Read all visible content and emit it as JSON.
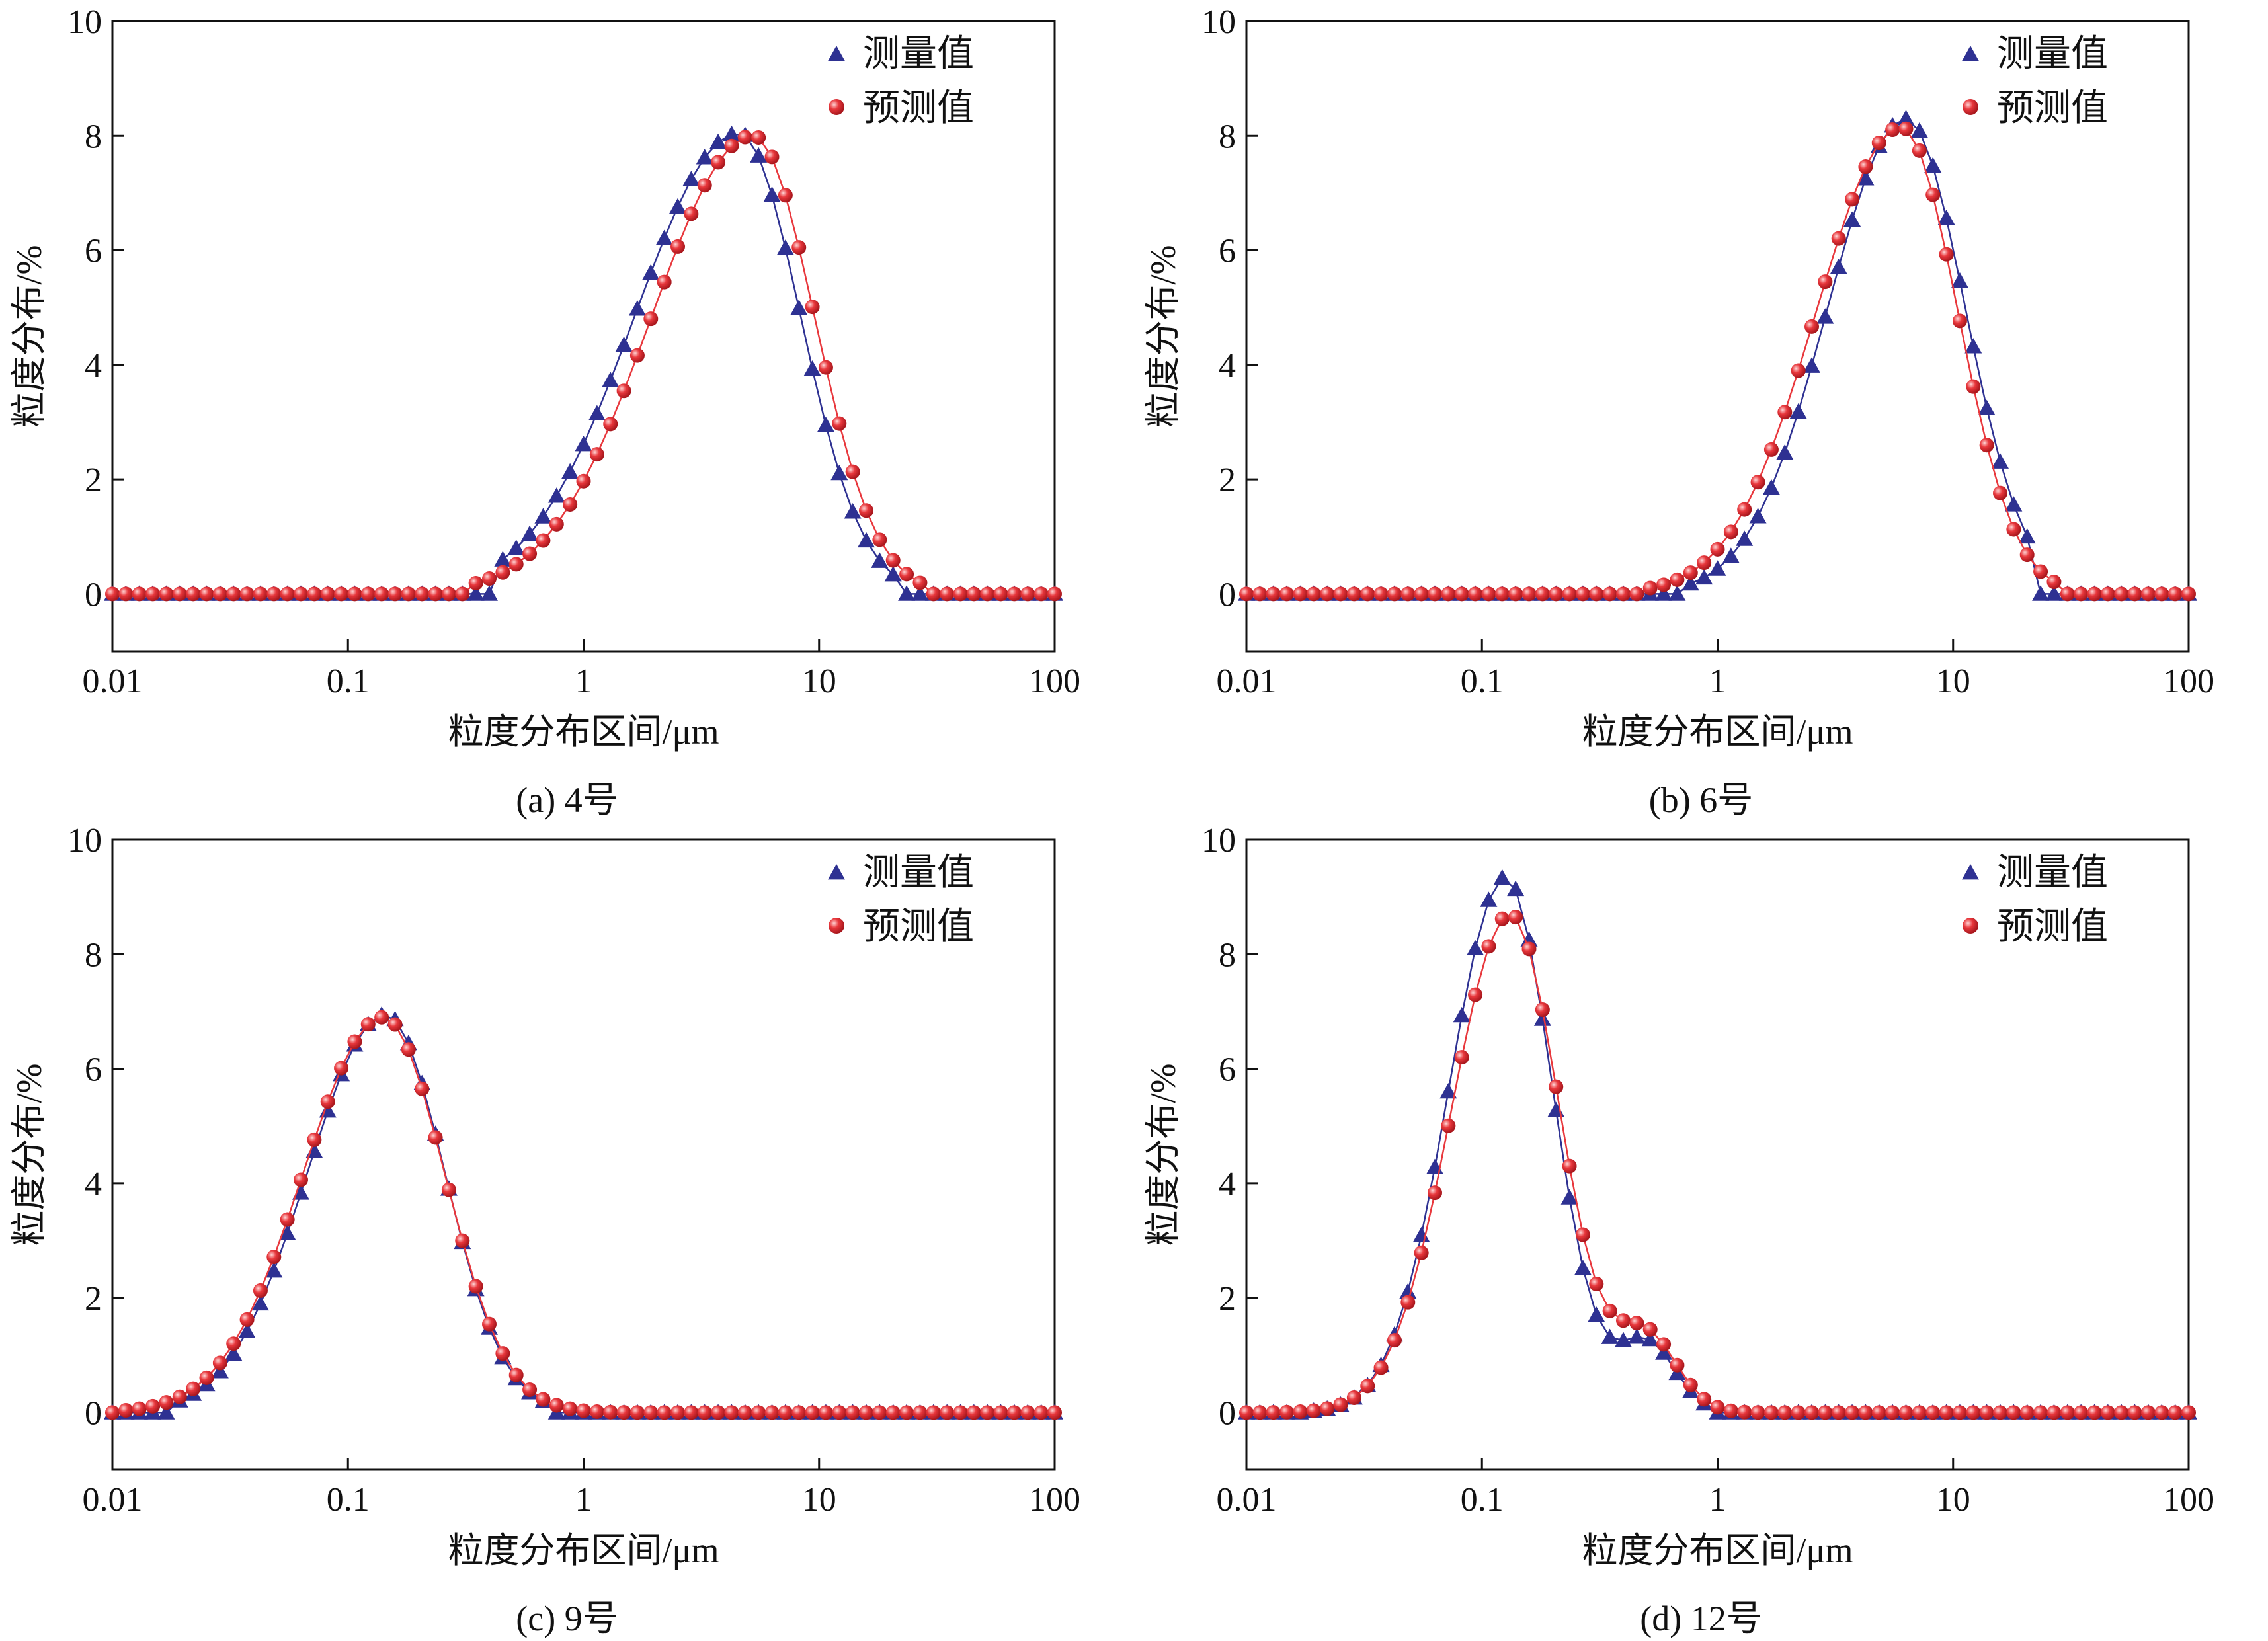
{
  "colors": {
    "measured": "#2e3192",
    "predicted": "#e8373c",
    "axis": "#111111"
  },
  "legend": {
    "measured": "测量值",
    "predicted": "预测值"
  },
  "chart_data": [
    {
      "type": "line",
      "caption": "(a) 4号",
      "xlabel": "粒度分布区间/μm",
      "ylabel": "粒度分布/%",
      "xscale": "log",
      "xlim": [
        0.01,
        100
      ],
      "ylim": [
        -1,
        10
      ],
      "xticks": [
        "0.01",
        "0.1",
        "1",
        "10",
        "100"
      ],
      "yticks": [
        "0",
        "2",
        "4",
        "6",
        "8",
        "10"
      ],
      "legend_position": "top-right",
      "series": [
        {
          "name": "测量值",
          "marker": "triangle",
          "params": {
            "peak": 8.05,
            "center_log10": 0.66,
            "sigma_left": 0.44,
            "sigma_right": 0.26,
            "cut_low_log10": -0.36,
            "cut_high_log10": 1.33
          }
        },
        {
          "name": "预测值",
          "marker": "sphere",
          "params": {
            "peak": 8.0,
            "center_log10": 0.72,
            "sigma_left": 0.43,
            "sigma_right": 0.26,
            "cut_low_log10": -0.5,
            "cut_high_log10": 1.45
          }
        }
      ]
    },
    {
      "type": "line",
      "caption": "(b) 6号",
      "xlabel": "粒度分布区间/μm",
      "ylabel": "粒度分布/%",
      "xscale": "log",
      "xlim": [
        0.01,
        100
      ],
      "ylim": [
        -1,
        10
      ],
      "xticks": [
        "0.01",
        "0.1",
        "1",
        "10",
        "100"
      ],
      "yticks": [
        "0",
        "2",
        "4",
        "6",
        "8",
        "10"
      ],
      "legend_position": "top-right",
      "series": [
        {
          "name": "测量值",
          "marker": "triangle",
          "params": {
            "peak": 8.3,
            "center_log10": 0.8,
            "sigma_left": 0.33,
            "sigma_right": 0.25,
            "cut_low_log10": -0.16,
            "cut_high_log10": 1.35
          }
        },
        {
          "name": "预测值",
          "marker": "sphere",
          "params": {
            "peak": 8.15,
            "center_log10": 0.78,
            "sigma_left": 0.36,
            "sigma_right": 0.24,
            "cut_low_log10": -0.3,
            "cut_high_log10": 1.45
          }
        }
      ]
    },
    {
      "type": "line",
      "caption": "(c) 9号",
      "xlabel": "粒度分布区间/μm",
      "ylabel": "粒度分布/%",
      "xscale": "log",
      "xlim": [
        0.01,
        100
      ],
      "ylim": [
        -1,
        10
      ],
      "xticks": [
        "0.01",
        "0.1",
        "1",
        "10",
        "100"
      ],
      "yticks": [
        "0",
        "2",
        "4",
        "6",
        "8",
        "10"
      ],
      "legend_position": "top-right",
      "series": [
        {
          "name": "测量值",
          "marker": "triangle",
          "params": {
            "peak": 6.95,
            "center_log10": -0.84,
            "sigma_left": 0.33,
            "sigma_right": 0.25,
            "cut_low_log10": -1.75,
            "cut_high_log10": -0.14
          }
        },
        {
          "name": "预测值",
          "marker": "sphere",
          "params": {
            "peak": 6.9,
            "center_log10": -0.85,
            "sigma_left": 0.34,
            "sigma_right": 0.26,
            "cut_low_log10": -1.95,
            "cut_high_log10": 0.5
          }
        }
      ]
    },
    {
      "type": "line",
      "caption": "(d) 12号",
      "xlabel": "粒度分布区间/μm",
      "ylabel": "粒度分布/%",
      "xscale": "log",
      "xlim": [
        0.01,
        100
      ],
      "ylim": [
        -1,
        10
      ],
      "xticks": [
        "0.01",
        "0.1",
        "1",
        "10",
        "100"
      ],
      "yticks": [
        "0",
        "2",
        "4",
        "6",
        "8",
        "10"
      ],
      "legend_position": "top-right",
      "series": [
        {
          "name": "测量值",
          "marker": "triangle",
          "params": {
            "peak": 9.35,
            "center_log10": -0.9,
            "sigma_left": 0.24,
            "sigma_right": 0.2,
            "cut_low_log10": -1.75,
            "cut_high_log10": -0.02,
            "shoulder": {
              "center_log10": -0.3,
              "height": 1.2,
              "sigma": 0.12
            }
          }
        },
        {
          "name": "预测值",
          "marker": "sphere",
          "params": {
            "peak": 8.7,
            "center_log10": -0.88,
            "sigma_left": 0.25,
            "sigma_right": 0.21,
            "cut_low_log10": -1.95,
            "cut_high_log10": 0.6,
            "shoulder": {
              "center_log10": -0.3,
              "height": 1.3,
              "sigma": 0.13
            }
          }
        }
      ]
    }
  ]
}
